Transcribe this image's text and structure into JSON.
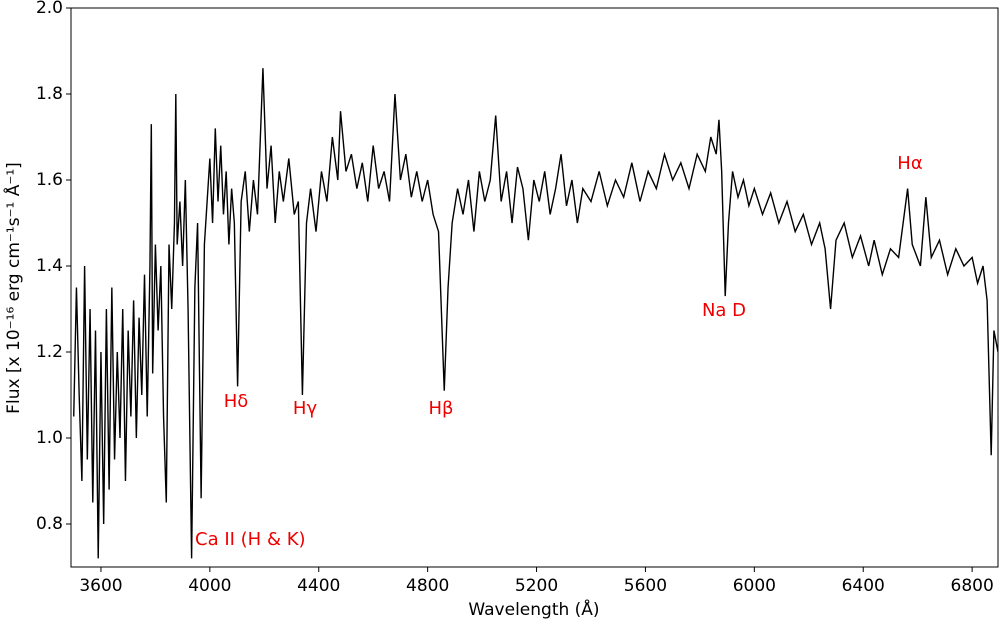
{
  "chart_data": {
    "type": "line",
    "xlabel": "Wavelength (Å)",
    "ylabel": "Flux [x 10⁻¹⁶ erg cm⁻¹s⁻¹ Å⁻¹]",
    "annotations": [
      "Ca II (H & K)",
      "Hδ",
      "Hγ",
      "Hβ",
      "Na D",
      "Hα"
    ],
    "annotation_color": "#ee0000",
    "color": "#000000",
    "xlim": [
      3490,
      6895
    ],
    "ylim": [
      0.7,
      2.0
    ],
    "xticks": [
      3600,
      4000,
      4400,
      4800,
      5200,
      5600,
      6000,
      6400,
      6800
    ],
    "yticks": [
      0.8,
      {
        "value": 1,
        "label": "1.0"
      },
      1.2,
      1.4,
      1.6,
      1.8,
      {
        "value": 2,
        "label": "2.0"
      }
    ],
    "x": [
      3500,
      3510,
      3520,
      3530,
      3540,
      3550,
      3560,
      3570,
      3580,
      3590,
      3600,
      3610,
      3620,
      3630,
      3640,
      3650,
      3660,
      3670,
      3680,
      3690,
      3700,
      3710,
      3720,
      3730,
      3740,
      3750,
      3760,
      3770,
      3780,
      3785,
      3790,
      3800,
      3810,
      3820,
      3830,
      3840,
      3850,
      3860,
      3870,
      3875,
      3880,
      3890,
      3900,
      3910,
      3920,
      3933,
      3945,
      3955,
      3968,
      3980,
      3990,
      4000,
      4010,
      4020,
      4030,
      4040,
      4050,
      4060,
      4070,
      4080,
      4090,
      4102,
      4115,
      4130,
      4145,
      4160,
      4175,
      4195,
      4210,
      4225,
      4240,
      4255,
      4270,
      4290,
      4310,
      4325,
      4340,
      4355,
      4370,
      4390,
      4410,
      4430,
      4450,
      4470,
      4480,
      4500,
      4520,
      4540,
      4560,
      4580,
      4600,
      4620,
      4640,
      4660,
      4680,
      4700,
      4720,
      4740,
      4760,
      4780,
      4800,
      4820,
      4840,
      4861,
      4875,
      4890,
      4910,
      4930,
      4950,
      4970,
      4990,
      5010,
      5030,
      5050,
      5070,
      5090,
      5110,
      5130,
      5150,
      5170,
      5190,
      5210,
      5230,
      5250,
      5270,
      5290,
      5310,
      5330,
      5350,
      5370,
      5400,
      5430,
      5460,
      5490,
      5520,
      5550,
      5580,
      5610,
      5640,
      5670,
      5700,
      5730,
      5760,
      5790,
      5820,
      5840,
      5860,
      5870,
      5880,
      5893,
      5905,
      5920,
      5940,
      5960,
      5980,
      6000,
      6030,
      6060,
      6090,
      6120,
      6150,
      6180,
      6210,
      6240,
      6260,
      6280,
      6300,
      6330,
      6360,
      6390,
      6420,
      6440,
      6470,
      6500,
      6530,
      6563,
      6580,
      6610,
      6630,
      6650,
      6680,
      6710,
      6740,
      6770,
      6800,
      6820,
      6840,
      6855,
      6870,
      6880,
      6895
    ],
    "values": [
      1.05,
      1.35,
      1.1,
      0.9,
      1.4,
      0.95,
      1.3,
      0.85,
      1.25,
      0.72,
      1.2,
      0.8,
      1.3,
      0.88,
      1.35,
      0.95,
      1.2,
      1.0,
      1.3,
      0.9,
      1.25,
      1.05,
      1.32,
      1.0,
      1.28,
      1.1,
      1.38,
      1.05,
      1.4,
      1.73,
      1.15,
      1.45,
      1.25,
      1.4,
      1.05,
      0.85,
      1.45,
      1.3,
      1.5,
      1.8,
      1.45,
      1.55,
      1.4,
      1.6,
      1.3,
      0.72,
      1.35,
      1.5,
      0.86,
      1.45,
      1.55,
      1.65,
      1.5,
      1.72,
      1.55,
      1.68,
      1.52,
      1.62,
      1.45,
      1.58,
      1.5,
      1.12,
      1.55,
      1.62,
      1.48,
      1.6,
      1.52,
      1.86,
      1.58,
      1.68,
      1.5,
      1.62,
      1.55,
      1.65,
      1.52,
      1.55,
      1.1,
      1.5,
      1.58,
      1.48,
      1.62,
      1.55,
      1.7,
      1.6,
      1.76,
      1.62,
      1.66,
      1.58,
      1.64,
      1.55,
      1.68,
      1.58,
      1.62,
      1.55,
      1.8,
      1.6,
      1.66,
      1.56,
      1.62,
      1.55,
      1.6,
      1.52,
      1.48,
      1.11,
      1.35,
      1.5,
      1.58,
      1.52,
      1.6,
      1.48,
      1.62,
      1.55,
      1.6,
      1.75,
      1.55,
      1.62,
      1.5,
      1.63,
      1.58,
      1.46,
      1.6,
      1.55,
      1.62,
      1.52,
      1.58,
      1.66,
      1.54,
      1.6,
      1.5,
      1.58,
      1.55,
      1.62,
      1.54,
      1.6,
      1.56,
      1.64,
      1.55,
      1.62,
      1.58,
      1.66,
      1.6,
      1.64,
      1.58,
      1.66,
      1.62,
      1.7,
      1.66,
      1.74,
      1.62,
      1.33,
      1.5,
      1.62,
      1.56,
      1.6,
      1.54,
      1.58,
      1.52,
      1.57,
      1.5,
      1.55,
      1.48,
      1.52,
      1.45,
      1.5,
      1.44,
      1.3,
      1.46,
      1.5,
      1.42,
      1.47,
      1.4,
      1.46,
      1.38,
      1.44,
      1.42,
      1.58,
      1.45,
      1.4,
      1.56,
      1.42,
      1.46,
      1.38,
      1.44,
      1.4,
      1.42,
      1.36,
      1.4,
      1.32,
      0.96,
      1.25,
      1.2
    ]
  }
}
